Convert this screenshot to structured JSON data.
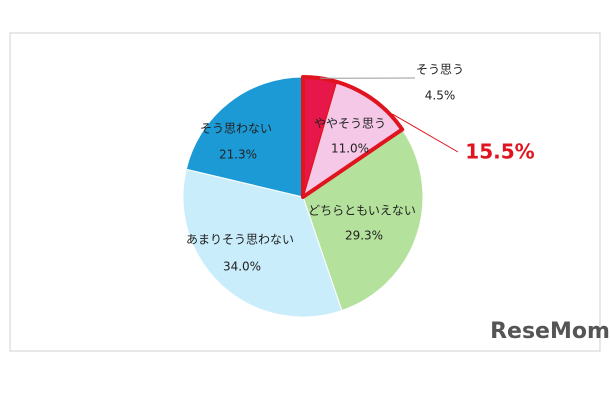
{
  "chart_data": {
    "type": "pie",
    "categories": [
      "そう思う",
      "ややそう思う",
      "どちらともいえない",
      "あまりそう思わない",
      "そう思わない"
    ],
    "values": [
      4.5,
      11.0,
      29.3,
      34.0,
      21.3
    ],
    "value_labels": [
      "4.5%",
      "11.0%",
      "29.3%",
      "34.0%",
      "21.3%"
    ],
    "colors": [
      "#e8174a",
      "#f6c8e8",
      "#b4e29c",
      "#c9edfb",
      "#1c9ad6"
    ],
    "annotation": "15.5%",
    "watermark": "ReseMom"
  }
}
